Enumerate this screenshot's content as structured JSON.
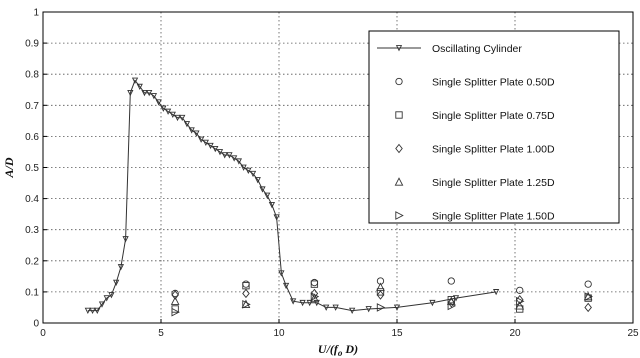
{
  "chart_data": {
    "type": "line",
    "xlabel": "U/(f_o D)",
    "ylabel": "A/D",
    "xlim": [
      0,
      25
    ],
    "ylim": [
      0,
      1
    ],
    "x_ticks": [
      "0",
      "5",
      "10",
      "15",
      "20",
      "25"
    ],
    "y_ticks": [
      "0",
      "0.1",
      "0.2",
      "0.3",
      "0.4",
      "0.5",
      "0.6",
      "0.7",
      "0.8",
      "0.9",
      "1"
    ],
    "grid": "dotted",
    "legend_position": "top-right",
    "series": [
      {
        "name": "Oscillating Cylinder",
        "style": "line-triangle-down",
        "points": [
          [
            1.9,
            0.04
          ],
          [
            2.1,
            0.04
          ],
          [
            2.3,
            0.04
          ],
          [
            2.5,
            0.06
          ],
          [
            2.7,
            0.08
          ],
          [
            2.9,
            0.09
          ],
          [
            3.1,
            0.13
          ],
          [
            3.3,
            0.18
          ],
          [
            3.5,
            0.27
          ],
          [
            3.7,
            0.74
          ],
          [
            3.9,
            0.78
          ],
          [
            4.1,
            0.76
          ],
          [
            4.3,
            0.74
          ],
          [
            4.5,
            0.74
          ],
          [
            4.7,
            0.73
          ],
          [
            4.9,
            0.71
          ],
          [
            5.1,
            0.69
          ],
          [
            5.3,
            0.68
          ],
          [
            5.5,
            0.67
          ],
          [
            5.7,
            0.66
          ],
          [
            5.9,
            0.66
          ],
          [
            6.1,
            0.64
          ],
          [
            6.3,
            0.62
          ],
          [
            6.5,
            0.61
          ],
          [
            6.7,
            0.59
          ],
          [
            6.9,
            0.58
          ],
          [
            7.1,
            0.57
          ],
          [
            7.3,
            0.56
          ],
          [
            7.5,
            0.55
          ],
          [
            7.7,
            0.54
          ],
          [
            7.9,
            0.54
          ],
          [
            8.1,
            0.53
          ],
          [
            8.3,
            0.52
          ],
          [
            8.5,
            0.5
          ],
          [
            8.7,
            0.49
          ],
          [
            8.9,
            0.48
          ],
          [
            9.1,
            0.46
          ],
          [
            9.3,
            0.43
          ],
          [
            9.5,
            0.41
          ],
          [
            9.7,
            0.38
          ],
          [
            9.9,
            0.34
          ],
          [
            10.1,
            0.16
          ],
          [
            10.3,
            0.12
          ],
          [
            10.6,
            0.07
          ],
          [
            11.0,
            0.065
          ],
          [
            11.3,
            0.065
          ],
          [
            11.6,
            0.065
          ],
          [
            12.0,
            0.05
          ],
          [
            12.4,
            0.05
          ],
          [
            13.1,
            0.04
          ],
          [
            13.8,
            0.045
          ],
          [
            15.0,
            0.05
          ],
          [
            16.5,
            0.065
          ],
          [
            17.5,
            0.08
          ],
          [
            19.2,
            0.1
          ]
        ]
      },
      {
        "name": "Single Splitter Plate 0.50D",
        "style": "circle",
        "points": [
          [
            5.6,
            0.095
          ],
          [
            8.6,
            0.125
          ],
          [
            11.5,
            0.13
          ],
          [
            14.3,
            0.135
          ],
          [
            17.3,
            0.135
          ],
          [
            20.2,
            0.105
          ],
          [
            23.1,
            0.125
          ]
        ]
      },
      {
        "name": "Single Splitter Plate 0.75D",
        "style": "square",
        "points": [
          [
            5.6,
            0.045
          ],
          [
            8.6,
            0.12
          ],
          [
            11.5,
            0.125
          ],
          [
            14.3,
            0.1
          ],
          [
            17.3,
            0.075
          ],
          [
            20.2,
            0.045
          ],
          [
            23.1,
            0.08
          ]
        ]
      },
      {
        "name": "Single Splitter Plate 1.00D",
        "style": "diamond",
        "points": [
          [
            5.6,
            0.09
          ],
          [
            8.6,
            0.095
          ],
          [
            11.5,
            0.095
          ],
          [
            14.3,
            0.09
          ],
          [
            17.3,
            0.065
          ],
          [
            20.2,
            0.075
          ],
          [
            23.1,
            0.05
          ]
        ]
      },
      {
        "name": "Single Splitter Plate 1.25D",
        "style": "triangle-up",
        "points": [
          [
            5.6,
            0.07
          ],
          [
            8.6,
            0.06
          ],
          [
            11.5,
            0.08
          ],
          [
            14.3,
            0.115
          ],
          [
            17.3,
            0.07
          ],
          [
            20.2,
            0.055
          ],
          [
            23.1,
            0.085
          ]
        ]
      },
      {
        "name": "Single Splitter Plate 1.50D",
        "style": "triangle-right",
        "points": [
          [
            5.6,
            0.035
          ],
          [
            8.6,
            0.06
          ],
          [
            11.5,
            0.085
          ],
          [
            14.3,
            0.05
          ],
          [
            17.3,
            0.055
          ],
          [
            20.2,
            0.07
          ],
          [
            23.1,
            0.085
          ]
        ]
      }
    ]
  }
}
